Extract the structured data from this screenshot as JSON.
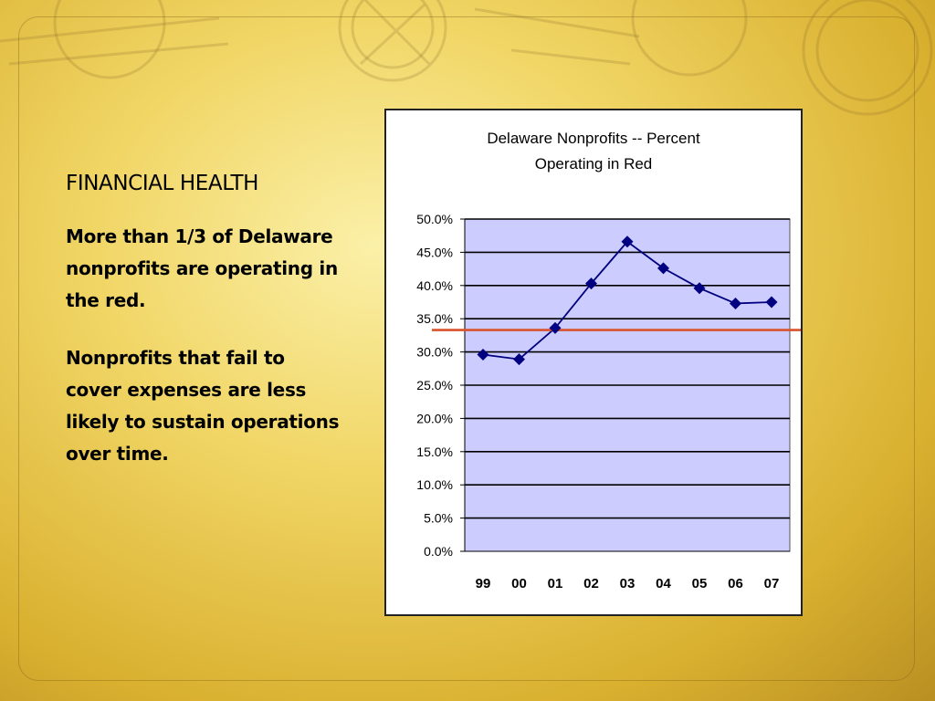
{
  "slide": {
    "title": "FINANCIAL HEALTH",
    "paragraph1": "More than 1/3 of Delaware nonprofits are operating in the red.",
    "paragraph2": "Nonprofits that fail to cover expenses are less likely to sustain operations over time."
  },
  "colors": {
    "plot_background": "#ccccff",
    "series_line": "#000080",
    "threshold_line": "#d9522b",
    "gridline": "#000000"
  },
  "chart_data": {
    "type": "line",
    "title_lines": [
      "Delaware Nonprofits -- Percent",
      "Operating in Red"
    ],
    "xlabel": "",
    "ylabel": "",
    "categories": [
      "99",
      "00",
      "01",
      "02",
      "03",
      "04",
      "05",
      "06",
      "07"
    ],
    "series": [
      {
        "values": [
          29.6,
          28.9,
          33.6,
          40.3,
          46.6,
          42.6,
          39.6,
          37.3,
          37.5
        ],
        "marker": "diamond"
      }
    ],
    "reference_line": {
      "value": 33.3
    },
    "ylim": [
      0,
      50
    ],
    "yticks": [
      "0.0%",
      "5.0%",
      "10.0%",
      "15.0%",
      "20.0%",
      "25.0%",
      "30.0%",
      "35.0%",
      "40.0%",
      "45.0%",
      "50.0%"
    ],
    "grid": true,
    "legend": "none"
  }
}
